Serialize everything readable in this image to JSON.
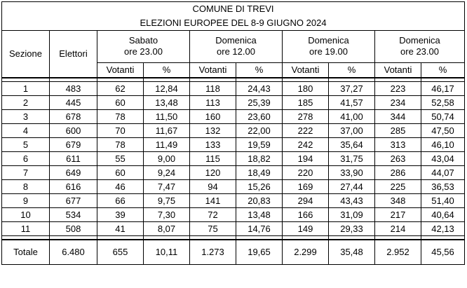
{
  "title": "COMUNE DI TREVI",
  "subtitle": "ELEZIONI EUROPEE DEL 8-9 GIUGNO 2024",
  "headers": {
    "sezione": "Sezione",
    "elettori": "Elettori",
    "groups": [
      {
        "line1": "Sabato",
        "line2": "ore 23.00"
      },
      {
        "line1": "Domenica",
        "line2": "ore 12.00"
      },
      {
        "line1": "Domenica",
        "line2": "ore 19.00"
      },
      {
        "line1": "Domenica",
        "line2": "ore 23.00"
      }
    ],
    "votanti": "Votanti",
    "percent": "%"
  },
  "rows": [
    {
      "sezione": "1",
      "elettori": "483",
      "v1": "62",
      "p1": "12,84",
      "v2": "118",
      "p2": "24,43",
      "v3": "180",
      "p3": "37,27",
      "v4": "223",
      "p4": "46,17"
    },
    {
      "sezione": "2",
      "elettori": "445",
      "v1": "60",
      "p1": "13,48",
      "v2": "113",
      "p2": "25,39",
      "v3": "185",
      "p3": "41,57",
      "v4": "234",
      "p4": "52,58"
    },
    {
      "sezione": "3",
      "elettori": "678",
      "v1": "78",
      "p1": "11,50",
      "v2": "160",
      "p2": "23,60",
      "v3": "278",
      "p3": "41,00",
      "v4": "344",
      "p4": "50,74"
    },
    {
      "sezione": "4",
      "elettori": "600",
      "v1": "70",
      "p1": "11,67",
      "v2": "132",
      "p2": "22,00",
      "v3": "222",
      "p3": "37,00",
      "v4": "285",
      "p4": "47,50"
    },
    {
      "sezione": "5",
      "elettori": "679",
      "v1": "78",
      "p1": "11,49",
      "v2": "133",
      "p2": "19,59",
      "v3": "242",
      "p3": "35,64",
      "v4": "313",
      "p4": "46,10"
    },
    {
      "sezione": "6",
      "elettori": "611",
      "v1": "55",
      "p1": "9,00",
      "v2": "115",
      "p2": "18,82",
      "v3": "194",
      "p3": "31,75",
      "v4": "263",
      "p4": "43,04"
    },
    {
      "sezione": "7",
      "elettori": "649",
      "v1": "60",
      "p1": "9,24",
      "v2": "120",
      "p2": "18,49",
      "v3": "220",
      "p3": "33,90",
      "v4": "286",
      "p4": "44,07"
    },
    {
      "sezione": "8",
      "elettori": "616",
      "v1": "46",
      "p1": "7,47",
      "v2": "94",
      "p2": "15,26",
      "v3": "169",
      "p3": "27,44",
      "v4": "225",
      "p4": "36,53"
    },
    {
      "sezione": "9",
      "elettori": "677",
      "v1": "66",
      "p1": "9,75",
      "v2": "141",
      "p2": "20,83",
      "v3": "294",
      "p3": "43,43",
      "v4": "348",
      "p4": "51,40"
    },
    {
      "sezione": "10",
      "elettori": "534",
      "v1": "39",
      "p1": "7,30",
      "v2": "72",
      "p2": "13,48",
      "v3": "166",
      "p3": "31,09",
      "v4": "217",
      "p4": "40,64"
    },
    {
      "sezione": "11",
      "elettori": "508",
      "v1": "41",
      "p1": "8,07",
      "v2": "75",
      "p2": "14,76",
      "v3": "149",
      "p3": "29,33",
      "v4": "214",
      "p4": "42,13"
    }
  ],
  "total": {
    "label": "Totale",
    "elettori": "6.480",
    "v1": "655",
    "p1": "10,11",
    "v2": "1.273",
    "p2": "19,65",
    "v3": "2.299",
    "p3": "35,48",
    "v4": "2.952",
    "p4": "45,56"
  }
}
